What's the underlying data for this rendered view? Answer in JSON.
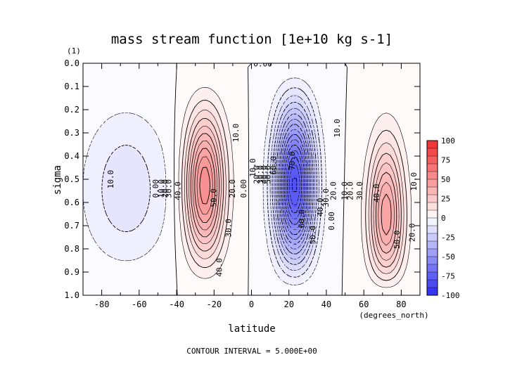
{
  "chart_data": {
    "type": "heatmap",
    "title": "mass stream function [1e+10 kg s-1]",
    "xlabel": "latitude",
    "x_unit": "(degrees_north)",
    "ylabel": "sigma",
    "y_unit": "(1)",
    "footer": "CONTOUR INTERVAL = 5.000E+00",
    "xlim": [
      -90,
      90
    ],
    "ylim": [
      0.0,
      1.0
    ],
    "y_inverted": true,
    "x_ticks": [
      -80,
      -60,
      -40,
      -20,
      0,
      20,
      40,
      60,
      80
    ],
    "x_tick_labels": [
      "-80",
      "-60",
      "-40",
      "-20",
      "0",
      "20",
      "40",
      "60",
      "80"
    ],
    "y_ticks": [
      0.0,
      0.1,
      0.2,
      0.3,
      0.4,
      0.5,
      0.6,
      0.7,
      0.8,
      0.9,
      1.0
    ],
    "y_tick_labels": [
      "0.0",
      "0.1",
      "0.2",
      "0.3",
      "0.4",
      "0.5",
      "0.6",
      "0.7",
      "0.8",
      "0.9",
      "1.0"
    ],
    "contour_interval": 5,
    "colorbar": {
      "min": -100,
      "max": 100,
      "ticks": [
        100,
        75,
        50,
        25,
        0,
        -25,
        -50,
        -75,
        -100
      ],
      "tick_labels": [
        "100",
        "75",
        "50",
        "25",
        "0",
        "-25",
        "-50",
        "-75",
        "-100"
      ],
      "negative_color": "#2b2bf0",
      "zero_color": "#ffffff",
      "positive_color": "#f02b2b"
    },
    "cells": [
      {
        "center_lat": -67,
        "center_sigma": 0.6,
        "peak": -14,
        "sign": "negative"
      },
      {
        "center_lat": -25,
        "center_sigma": 0.55,
        "peak": 55,
        "sign": "positive"
      },
      {
        "center_lat": 23,
        "center_sigma": 0.55,
        "peak": -82,
        "sign": "negative"
      },
      {
        "center_lat": 72,
        "center_sigma": 0.8,
        "peak": 56,
        "sign": "positive"
      }
    ],
    "contour_labels": [
      {
        "text": "0.00",
        "lat": 6,
        "sigma": 0.005
      },
      {
        "text": "10.0",
        "lat": -75,
        "sigma": 0.5
      },
      {
        "text": "0.00",
        "lat": -51,
        "sigma": 0.54
      },
      {
        "text": "10.0",
        "lat": -48,
        "sigma": 0.54
      },
      {
        "text": "20.0",
        "lat": -46,
        "sigma": 0.54
      },
      {
        "text": "30.0",
        "lat": -44,
        "sigma": 0.54
      },
      {
        "text": "40.0",
        "lat": -39,
        "sigma": 0.55
      },
      {
        "text": "50.0",
        "lat": -20,
        "sigma": 0.58
      },
      {
        "text": "20.0",
        "lat": -10,
        "sigma": 0.54
      },
      {
        "text": "30.0",
        "lat": -12,
        "sigma": 0.71
      },
      {
        "text": "40.0",
        "lat": -17,
        "sigma": 0.88
      },
      {
        "text": "10.0",
        "lat": -8,
        "sigma": 0.3
      },
      {
        "text": "0.00",
        "lat": -4,
        "sigma": 0.54
      },
      {
        "text": "10.0",
        "lat": 1,
        "sigma": 0.45
      },
      {
        "text": "20.0",
        "lat": 3,
        "sigma": 0.48
      },
      {
        "text": "30.0",
        "lat": 5,
        "sigma": 0.48
      },
      {
        "text": "40.0",
        "lat": 7,
        "sigma": 0.48
      },
      {
        "text": "50.0",
        "lat": 9,
        "sigma": 0.48
      },
      {
        "text": "60.0",
        "lat": 12,
        "sigma": 0.44
      },
      {
        "text": "70.0",
        "lat": 22,
        "sigma": 0.42
      },
      {
        "text": "60.0",
        "lat": 27,
        "sigma": 0.67
      },
      {
        "text": "50.0",
        "lat": 33,
        "sigma": 0.74
      },
      {
        "text": "40.0",
        "lat": 37,
        "sigma": 0.62
      },
      {
        "text": "30.0",
        "lat": 40,
        "sigma": 0.58
      },
      {
        "text": "20.0",
        "lat": 44,
        "sigma": 0.55
      },
      {
        "text": "10.0",
        "lat": 46,
        "sigma": 0.28
      },
      {
        "text": "0.00",
        "lat": 43,
        "sigma": 0.68
      },
      {
        "text": "10.0",
        "lat": 50,
        "sigma": 0.55
      },
      {
        "text": "20.0",
        "lat": 53,
        "sigma": 0.55
      },
      {
        "text": "30.0",
        "lat": 58,
        "sigma": 0.55
      },
      {
        "text": "40.0",
        "lat": 67,
        "sigma": 0.56
      },
      {
        "text": "50.0",
        "lat": 78,
        "sigma": 0.76
      },
      {
        "text": "10.0",
        "lat": 87,
        "sigma": 0.51
      },
      {
        "text": "20.0",
        "lat": 86,
        "sigma": 0.73
      }
    ]
  }
}
